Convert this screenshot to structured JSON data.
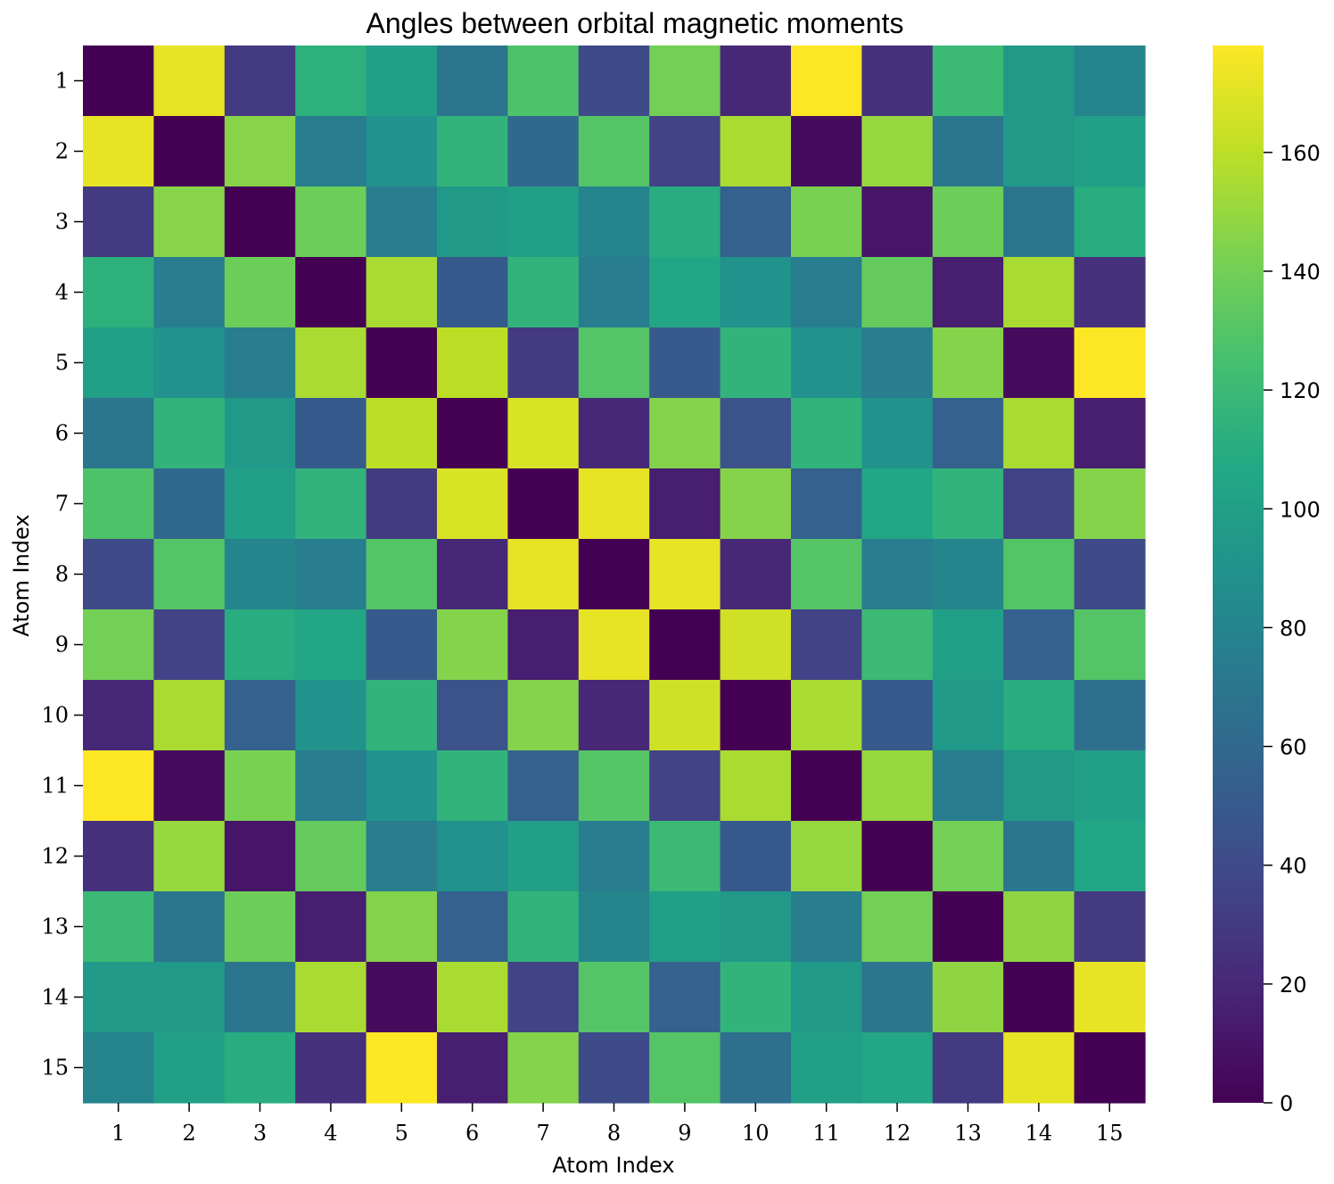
{
  "chart_data": {
    "type": "heatmap",
    "title": "Angles between orbital magnetic moments",
    "xlabel": "Atom Index",
    "ylabel": "Atom Index",
    "x_categories": [
      "1",
      "2",
      "3",
      "4",
      "5",
      "6",
      "7",
      "8",
      "9",
      "10",
      "11",
      "12",
      "13",
      "14",
      "15"
    ],
    "y_categories": [
      "1",
      "2",
      "3",
      "4",
      "5",
      "6",
      "7",
      "8",
      "9",
      "10",
      "11",
      "12",
      "13",
      "14",
      "15"
    ],
    "colormap": "viridis",
    "vmin": 0,
    "vmax": 178,
    "colorbar_ticks": [
      0,
      20,
      40,
      60,
      80,
      100,
      120,
      140,
      160
    ],
    "colorbar_tick_labels": [
      "0",
      "20",
      "40",
      "60",
      "80",
      "100",
      "120",
      "140",
      "160"
    ],
    "matrix": [
      [
        0,
        172,
        30,
        113,
        100,
        70,
        128,
        40,
        140,
        20,
        178,
        25,
        120,
        95,
        80
      ],
      [
        172,
        0,
        146,
        75,
        90,
        115,
        60,
        130,
        35,
        155,
        5,
        150,
        70,
        95,
        100
      ],
      [
        30,
        146,
        0,
        138,
        75,
        95,
        100,
        80,
        110,
        55,
        142,
        10,
        138,
        70,
        110
      ],
      [
        113,
        75,
        138,
        0,
        155,
        50,
        115,
        75,
        105,
        90,
        75,
        135,
        15,
        155,
        25
      ],
      [
        100,
        90,
        75,
        155,
        0,
        160,
        30,
        130,
        50,
        115,
        90,
        75,
        145,
        5,
        178
      ],
      [
        70,
        115,
        95,
        50,
        160,
        0,
        168,
        20,
        145,
        45,
        115,
        90,
        55,
        155,
        15
      ],
      [
        128,
        60,
        100,
        115,
        30,
        168,
        0,
        172,
        15,
        145,
        55,
        105,
        115,
        35,
        145
      ],
      [
        40,
        130,
        80,
        75,
        130,
        20,
        172,
        0,
        172,
        20,
        130,
        75,
        80,
        130,
        40
      ],
      [
        140,
        35,
        110,
        105,
        50,
        145,
        15,
        172,
        0,
        165,
        35,
        120,
        100,
        55,
        130
      ],
      [
        20,
        155,
        55,
        90,
        115,
        45,
        145,
        20,
        165,
        0,
        155,
        50,
        95,
        110,
        65
      ],
      [
        178,
        5,
        142,
        75,
        90,
        115,
        55,
        130,
        35,
        155,
        0,
        150,
        75,
        95,
        100
      ],
      [
        25,
        150,
        10,
        135,
        75,
        90,
        100,
        75,
        120,
        50,
        150,
        0,
        140,
        70,
        105
      ],
      [
        120,
        70,
        138,
        15,
        145,
        55,
        115,
        80,
        100,
        95,
        75,
        140,
        0,
        148,
        30
      ],
      [
        95,
        95,
        70,
        155,
        5,
        155,
        35,
        130,
        55,
        115,
        95,
        70,
        148,
        0,
        172
      ],
      [
        80,
        100,
        110,
        25,
        178,
        15,
        145,
        40,
        130,
        65,
        100,
        105,
        30,
        172,
        0
      ]
    ]
  }
}
